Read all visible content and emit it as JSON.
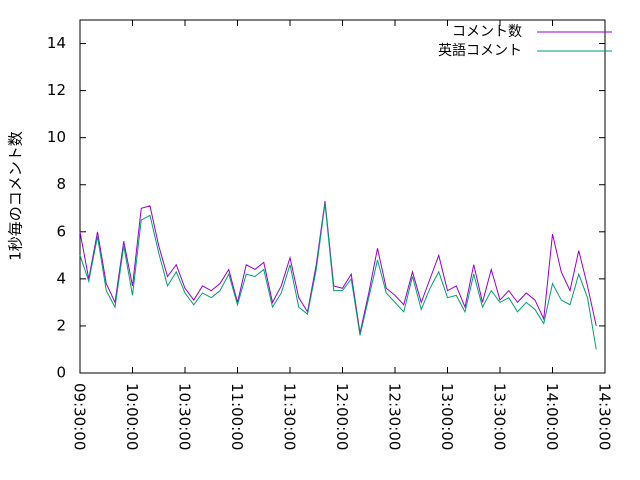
{
  "chart_data": {
    "type": "line",
    "ylabel": "1秒毎のコメント数",
    "x": [
      "09:30:00",
      "09:35:00",
      "09:40:00",
      "09:45:00",
      "09:50:00",
      "09:55:00",
      "10:00:00",
      "10:05:00",
      "10:10:00",
      "10:15:00",
      "10:20:00",
      "10:25:00",
      "10:30:00",
      "10:35:00",
      "10:40:00",
      "10:45:00",
      "10:50:00",
      "10:55:00",
      "11:00:00",
      "11:05:00",
      "11:10:00",
      "11:15:00",
      "11:20:00",
      "11:25:00",
      "11:30:00",
      "11:35:00",
      "11:40:00",
      "11:45:00",
      "11:50:00",
      "11:55:00",
      "12:00:00",
      "12:05:00",
      "12:10:00",
      "12:15:00",
      "12:20:00",
      "12:25:00",
      "12:30:00",
      "12:35:00",
      "12:40:00",
      "12:45:00",
      "12:50:00",
      "12:55:00",
      "13:00:00",
      "13:05:00",
      "13:10:00",
      "13:15:00",
      "13:20:00",
      "13:25:00",
      "13:30:00",
      "13:35:00",
      "13:40:00",
      "13:45:00",
      "13:50:00",
      "13:55:00",
      "14:00:00",
      "14:05:00",
      "14:10:00",
      "14:15:00",
      "14:20:00",
      "14:25:00"
    ],
    "series": [
      {
        "name": "コメント数",
        "color": "#9400d3",
        "values": [
          6.0,
          4.0,
          6.0,
          3.8,
          3.0,
          5.6,
          3.7,
          7.0,
          7.1,
          5.4,
          4.1,
          4.6,
          3.6,
          3.1,
          3.7,
          3.5,
          3.8,
          4.4,
          3.0,
          4.6,
          4.4,
          4.7,
          3.0,
          3.7,
          4.9,
          3.2,
          2.6,
          4.6,
          7.3,
          3.7,
          3.6,
          4.2,
          1.7,
          3.4,
          5.3,
          3.6,
          3.3,
          2.9,
          4.3,
          3.0,
          4.0,
          5.0,
          3.5,
          3.7,
          2.8,
          4.6,
          3.0,
          4.4,
          3.1,
          3.5,
          3.0,
          3.4,
          3.1,
          2.3,
          5.9,
          4.3,
          3.5,
          5.2,
          3.7,
          2.0
        ]
      },
      {
        "name": "英語コメント",
        "color": "#009e73",
        "values": [
          5.0,
          3.9,
          5.8,
          3.5,
          2.8,
          5.4,
          3.3,
          6.5,
          6.7,
          5.1,
          3.7,
          4.3,
          3.4,
          2.9,
          3.4,
          3.2,
          3.5,
          4.2,
          2.9,
          4.2,
          4.1,
          4.4,
          2.8,
          3.4,
          4.6,
          2.8,
          2.5,
          4.4,
          7.2,
          3.5,
          3.5,
          4.0,
          1.6,
          3.2,
          4.8,
          3.4,
          3.0,
          2.6,
          4.1,
          2.7,
          3.6,
          4.3,
          3.2,
          3.3,
          2.6,
          4.2,
          2.8,
          3.5,
          3.0,
          3.2,
          2.6,
          3.0,
          2.7,
          2.1,
          3.8,
          3.1,
          2.9,
          4.2,
          3.2,
          1.0
        ]
      }
    ],
    "xlim": [
      "09:30:00",
      "14:30:00"
    ],
    "xticks": [
      "09:30:00",
      "10:00:00",
      "10:30:00",
      "11:00:00",
      "11:30:00",
      "12:00:00",
      "12:30:00",
      "13:00:00",
      "13:30:00",
      "14:00:00",
      "14:30:00"
    ],
    "ylim": [
      0,
      15
    ],
    "yticks": [
      0,
      2,
      4,
      6,
      8,
      10,
      12,
      14
    ],
    "legend": "top-right"
  }
}
